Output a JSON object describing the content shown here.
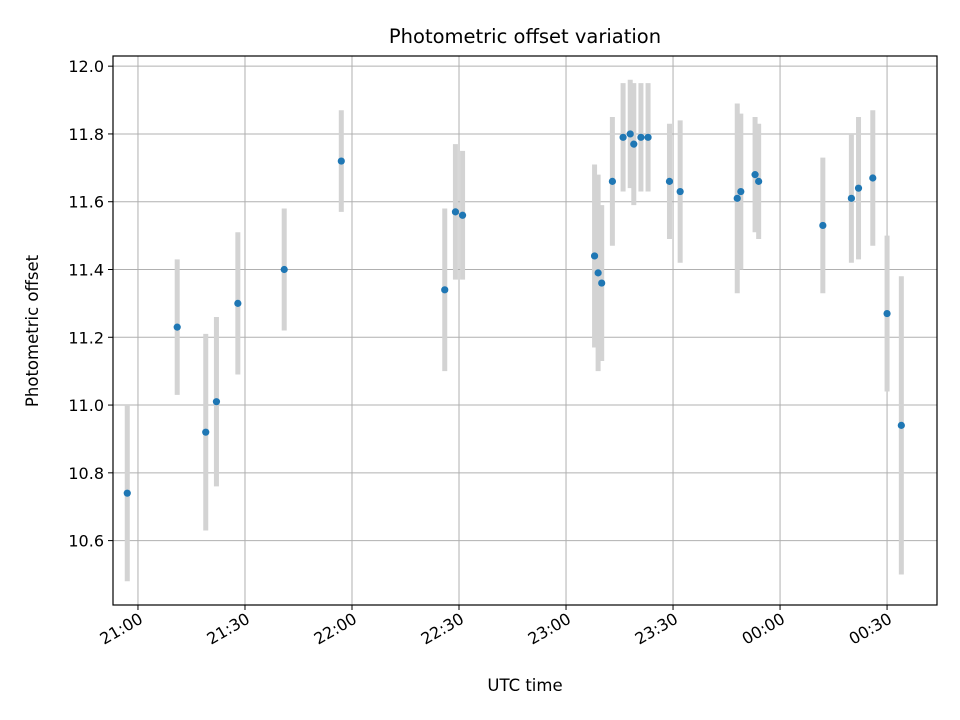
{
  "chart_data": {
    "type": "scatter",
    "title": "Photometric offset variation",
    "xlabel": "UTC time",
    "ylabel": "Photometric offset",
    "x_axis_type": "time",
    "xlim": [
      "20:53",
      "00:44"
    ],
    "ylim": [
      10.41,
      12.03
    ],
    "yticks": [
      10.6,
      10.8,
      11.0,
      11.2,
      11.4,
      11.6,
      11.8,
      12.0
    ],
    "xticks": [
      "21:00",
      "21:30",
      "22:00",
      "22:30",
      "23:00",
      "23:30",
      "00:00",
      "00:30"
    ],
    "grid": true,
    "marker_color": "#1f77b4",
    "errorbar_color": "#d3d3d3",
    "points": [
      {
        "time": "20:57",
        "y": 10.74,
        "err": 0.26
      },
      {
        "time": "21:11",
        "y": 11.23,
        "err": 0.2
      },
      {
        "time": "21:19",
        "y": 10.92,
        "err": 0.29
      },
      {
        "time": "21:22",
        "y": 11.01,
        "err": 0.25
      },
      {
        "time": "21:28",
        "y": 11.3,
        "err": 0.21
      },
      {
        "time": "21:41",
        "y": 11.4,
        "err": 0.18
      },
      {
        "time": "21:57",
        "y": 11.72,
        "err": 0.15
      },
      {
        "time": "22:26",
        "y": 11.34,
        "err": 0.24
      },
      {
        "time": "22:29",
        "y": 11.57,
        "err": 0.2
      },
      {
        "time": "22:31",
        "y": 11.56,
        "err": 0.19
      },
      {
        "time": "23:08",
        "y": 11.44,
        "err": 0.27
      },
      {
        "time": "23:09",
        "y": 11.39,
        "err": 0.29
      },
      {
        "time": "23:10",
        "y": 11.36,
        "err": 0.23
      },
      {
        "time": "23:13",
        "y": 11.66,
        "err": 0.19
      },
      {
        "time": "23:16",
        "y": 11.79,
        "err": 0.16
      },
      {
        "time": "23:18",
        "y": 11.8,
        "err": 0.16
      },
      {
        "time": "23:19",
        "y": 11.77,
        "err": 0.18
      },
      {
        "time": "23:21",
        "y": 11.79,
        "err": 0.16
      },
      {
        "time": "23:23",
        "y": 11.79,
        "err": 0.16
      },
      {
        "time": "23:29",
        "y": 11.66,
        "err": 0.17
      },
      {
        "time": "23:32",
        "y": 11.63,
        "err": 0.21
      },
      {
        "time": "23:48",
        "y": 11.61,
        "err": 0.28
      },
      {
        "time": "23:49",
        "y": 11.63,
        "err": 0.23
      },
      {
        "time": "23:53",
        "y": 11.68,
        "err": 0.17
      },
      {
        "time": "23:54",
        "y": 11.66,
        "err": 0.17
      },
      {
        "time": "00:12",
        "y": 11.53,
        "err": 0.2
      },
      {
        "time": "00:20",
        "y": 11.61,
        "err": 0.19
      },
      {
        "time": "00:22",
        "y": 11.64,
        "err": 0.21
      },
      {
        "time": "00:26",
        "y": 11.67,
        "err": 0.2
      },
      {
        "time": "00:30",
        "y": 11.27,
        "err": 0.23
      },
      {
        "time": "00:34",
        "y": 10.94,
        "err": 0.44
      }
    ]
  }
}
